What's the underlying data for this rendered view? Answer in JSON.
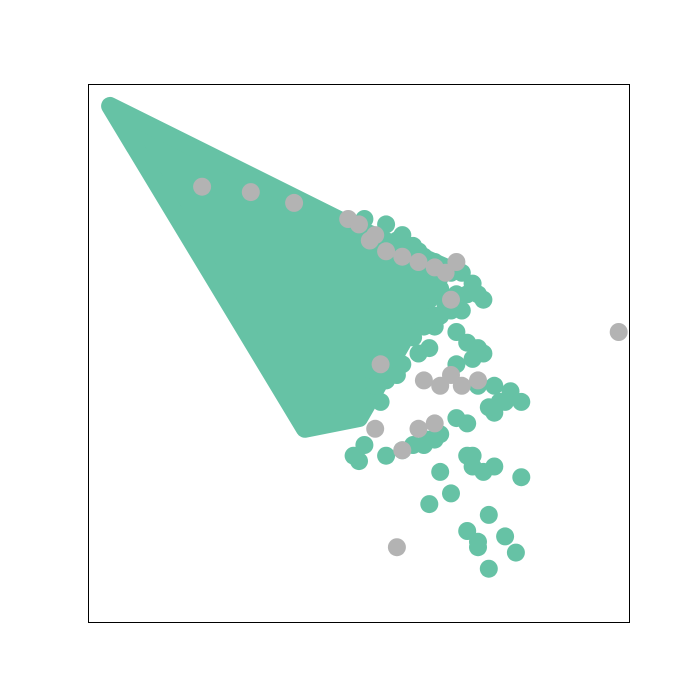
{
  "chart_data": {
    "type": "scatter",
    "title": "",
    "xlabel": "",
    "ylabel": "",
    "axes_visible": false,
    "ticks": "none",
    "grid": false,
    "legend": "none",
    "xlim": [
      0,
      100
    ],
    "ylim": [
      0,
      100
    ],
    "colors": {
      "teal": "#66c2a5",
      "gray": "#b3b3b3"
    },
    "dense_region": {
      "fill": "#66c2a5",
      "outline": [
        [
          4,
          96
        ],
        [
          48,
          74
        ],
        [
          66,
          66
        ],
        [
          50,
          38
        ],
        [
          40,
          36
        ]
      ]
    },
    "series": [
      {
        "color": "#66c2a5",
        "x": [
          51,
          55,
          58,
          57,
          60,
          61,
          62,
          64,
          63,
          66,
          64,
          67,
          68,
          69,
          62,
          65,
          63,
          66,
          68,
          70,
          72,
          73,
          71,
          65,
          67,
          69,
          62,
          64,
          60,
          59,
          57,
          61,
          63,
          56,
          58,
          55,
          53,
          52,
          57,
          54,
          50,
          66,
          64,
          62,
          60,
          68,
          70,
          72,
          73,
          68,
          71,
          75,
          78,
          77,
          80,
          72,
          76,
          75,
          74,
          70,
          68,
          65,
          63,
          62,
          60,
          58,
          55,
          50,
          49,
          51,
          65,
          70,
          71,
          73,
          67,
          63,
          74,
          70,
          72,
          74,
          79,
          77,
          75,
          80,
          64,
          72,
          71
        ],
        "y": [
          75,
          74,
          72,
          71,
          70,
          69,
          68,
          67,
          66,
          66,
          65,
          65,
          66,
          65,
          62,
          62,
          60,
          60,
          61,
          61,
          61,
          60,
          63,
          57,
          58,
          58,
          56,
          55,
          54,
          58,
          53,
          50,
          51,
          49,
          48,
          45,
          44,
          47,
          46,
          41,
          40,
          59,
          57,
          55,
          53,
          54,
          52,
          51,
          50,
          48,
          49,
          44,
          43,
          41,
          41,
          44,
          41,
          39,
          40,
          37,
          38,
          35,
          34,
          33,
          33,
          32,
          31,
          30,
          31,
          33,
          28,
          31,
          29,
          28,
          24,
          22,
          20,
          17,
          14,
          10,
          13,
          16,
          29,
          27,
          34,
          15,
          31
        ]
      },
      {
        "color": "#b3b3b3",
        "x": [
          21,
          30,
          38,
          48,
          50,
          52,
          53,
          55,
          58,
          61,
          64,
          66,
          67,
          54,
          62,
          65,
          67,
          69,
          72,
          53,
          58,
          64,
          61,
          98,
          57,
          68
        ],
        "y": [
          81,
          80,
          78,
          75,
          74,
          71,
          72,
          69,
          68,
          67,
          66,
          65,
          60,
          48,
          45,
          44,
          46,
          44,
          45,
          36,
          32,
          37,
          36,
          54,
          14,
          67
        ]
      }
    ]
  }
}
